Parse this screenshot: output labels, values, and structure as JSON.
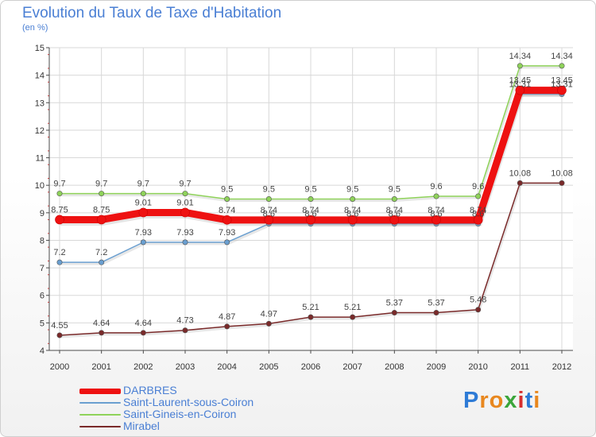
{
  "title": "Evolution du Taux de Taxe d'Habitation",
  "subtitle": "(en %)",
  "brand": "Proxiti",
  "colors": {
    "text": "#4a7fd4",
    "axis": "#4a4a4a",
    "grid": "#d8d8d8"
  },
  "chart_data": {
    "type": "line",
    "x": [
      "2000",
      "2001",
      "2002",
      "2003",
      "2004",
      "2005",
      "2006",
      "2007",
      "2008",
      "2009",
      "2010",
      "2011",
      "2012"
    ],
    "ylim": [
      4,
      15
    ],
    "yticks": [
      4,
      5,
      6,
      7,
      8,
      9,
      10,
      11,
      12,
      13,
      14,
      15
    ],
    "grid": true,
    "legend": "bottom-left",
    "series": [
      {
        "name": "Mirabel",
        "color": "#7a2a2a",
        "values": [
          4.55,
          4.64,
          4.64,
          4.73,
          4.87,
          4.97,
          5.21,
          5.21,
          5.37,
          5.37,
          5.48,
          10.08,
          10.08
        ],
        "labels": [
          "4.55",
          "4.64",
          "4.64",
          "4.73",
          "4.87",
          "4.97",
          "5.21",
          "5.21",
          "5.37",
          "5.37",
          "5.48",
          "10.08",
          "10.08"
        ]
      },
      {
        "name": "Saint-Gineis-en-Coiron",
        "color": "#8fd35a",
        "values": [
          9.7,
          9.7,
          9.7,
          9.7,
          9.5,
          9.5,
          9.5,
          9.5,
          9.5,
          9.6,
          9.6,
          14.34,
          14.34
        ],
        "labels": [
          "9.7",
          "9.7",
          "9.7",
          "9.7",
          "9.5",
          "9.5",
          "9.5",
          "9.5",
          "9.5",
          "9.6",
          "9.6",
          "14.34",
          "14.34"
        ]
      },
      {
        "name": "Saint-Laurent-sous-Coiron",
        "color": "#6a9fd0",
        "values": [
          7.2,
          7.2,
          7.93,
          7.93,
          7.93,
          8.6,
          8.6,
          8.6,
          8.6,
          8.6,
          8.6,
          13.31,
          13.31
        ],
        "labels": [
          "7.2",
          "7.2",
          "7.93",
          "7.93",
          "7.93",
          "8.6",
          "8.6",
          "8.6",
          "8.6",
          "8.6",
          "8.6",
          "13.31",
          "13.31"
        ]
      },
      {
        "name": "DARBRES",
        "color": "#ee1111",
        "values": [
          8.75,
          8.75,
          9.01,
          9.01,
          8.74,
          8.74,
          8.74,
          8.74,
          8.74,
          8.74,
          8.74,
          13.45,
          13.45
        ],
        "labels": [
          "8.75",
          "8.75",
          "9.01",
          "9.01",
          "8.74",
          "8.74",
          "8.74",
          "8.74",
          "8.74",
          "8.74",
          "8.74",
          "13.45",
          "13.45"
        ]
      }
    ]
  },
  "legend_items": [
    {
      "label": "DARBRES",
      "color": "#ee1111",
      "width": 7
    },
    {
      "label": "Saint-Laurent-sous-Coiron",
      "color": "#6a9fd0",
      "width": 1.5
    },
    {
      "label": "Saint-Gineis-en-Coiron",
      "color": "#8fd35a",
      "width": 1.5
    },
    {
      "label": "Mirabel",
      "color": "#7a2a2a",
      "width": 1.5
    }
  ]
}
